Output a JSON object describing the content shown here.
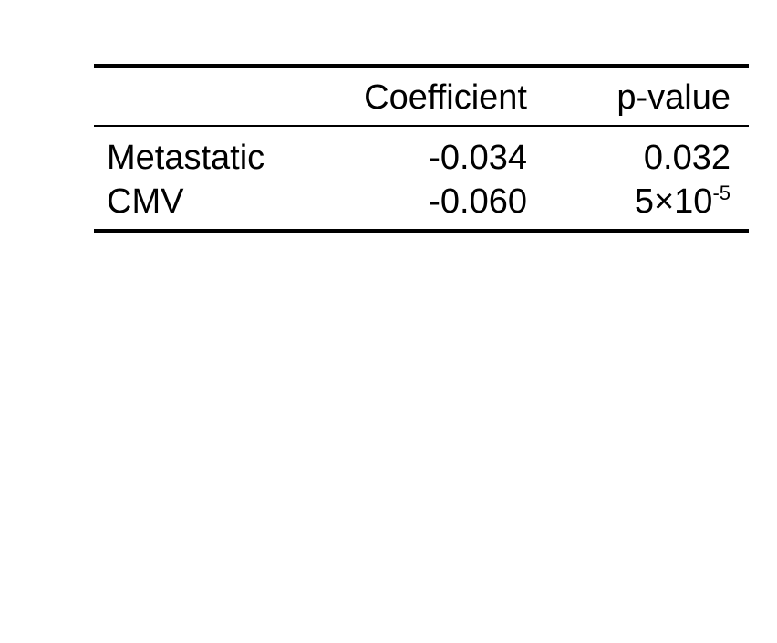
{
  "table": {
    "headers": {
      "label": "",
      "coefficient": "Coefficient",
      "p_value": "p-value"
    },
    "rows": [
      {
        "label": "Metastatic",
        "coefficient": "-0.034",
        "p_value_base": "0.032",
        "p_value_exp": ""
      },
      {
        "label": "CMV",
        "coefficient": "-0.060",
        "p_value_base": "5×10",
        "p_value_exp": "-5"
      }
    ]
  }
}
